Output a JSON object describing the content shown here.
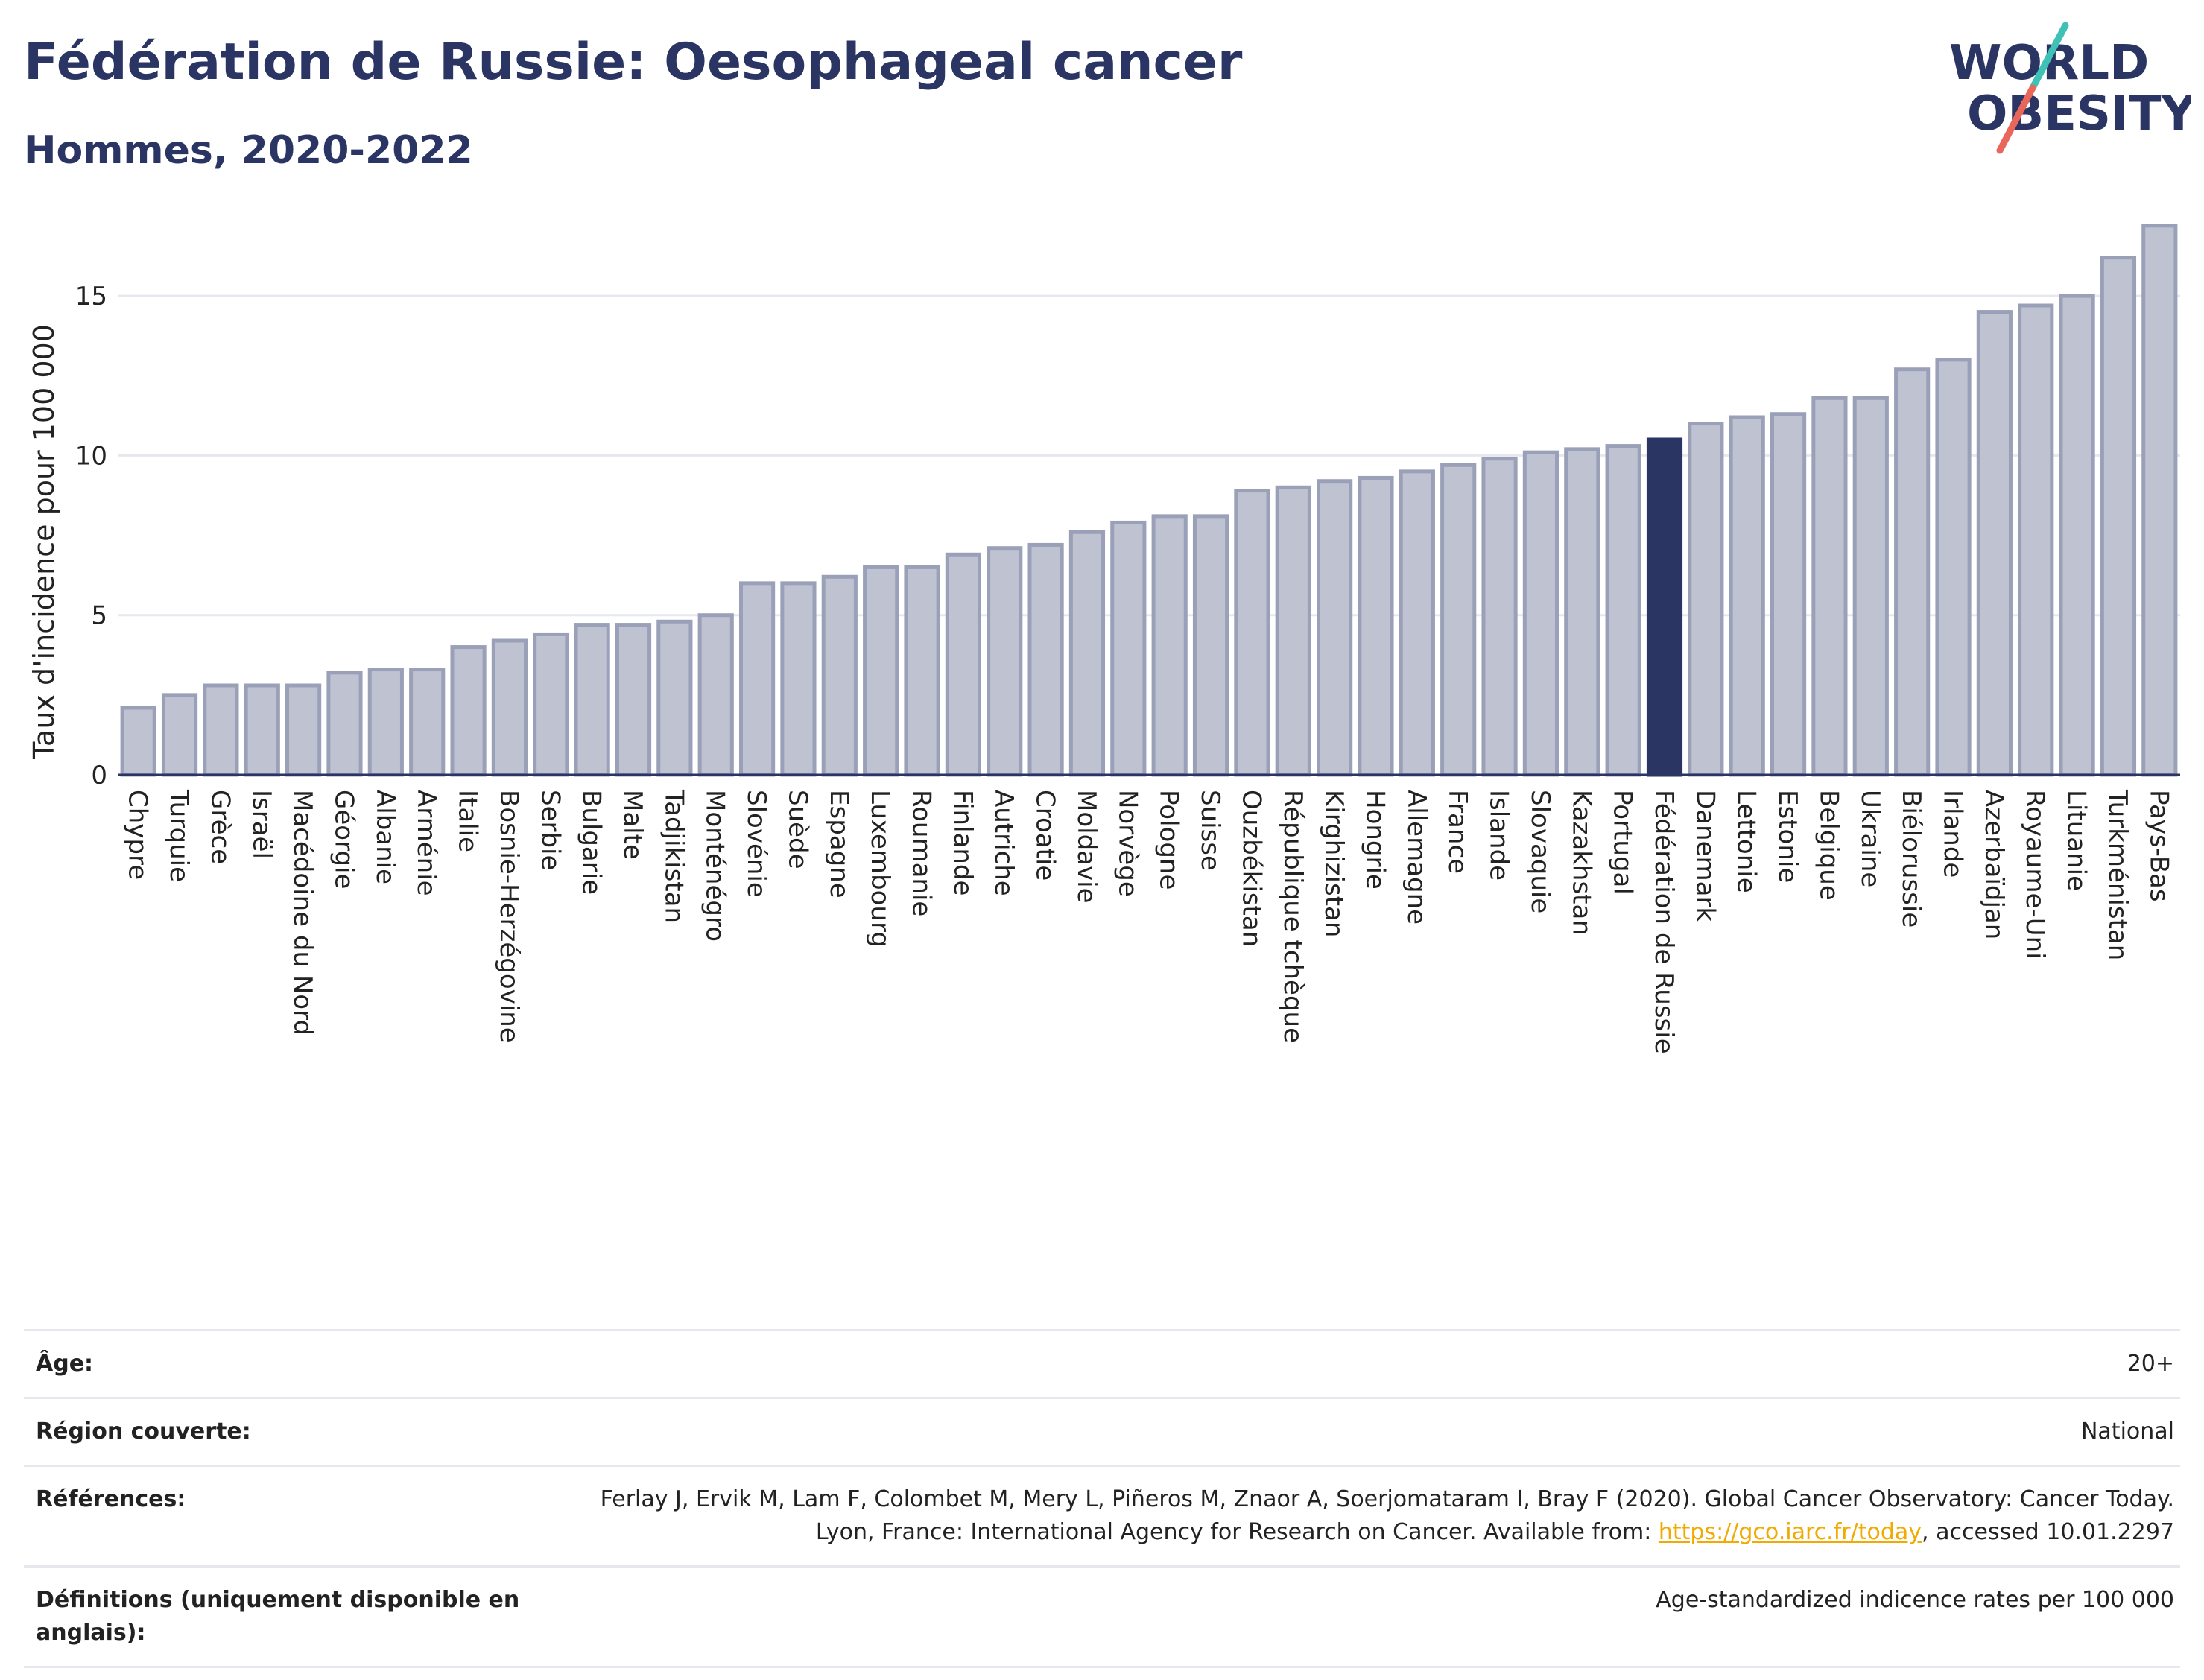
{
  "header": {
    "title": "Fédération de Russie: Oesophageal cancer",
    "subtitle": "Hommes, 2020-2022"
  },
  "logo": {
    "line1": "WORLD",
    "line2": "OBESITY"
  },
  "colors": {
    "bar": "#bfc3d1",
    "bar_stroke": "#9aa0b8",
    "highlight": "#2b3564",
    "grid": "#e6e8ee"
  },
  "chart_data": {
    "type": "bar",
    "ylabel": "Taux d'incidence pour 100 000",
    "ylim": [
      0,
      17.5
    ],
    "yticks": [
      0,
      5,
      10,
      15
    ],
    "grid": true,
    "highlight": "Fédération de Russie",
    "categories": [
      "Chypre",
      "Turquie",
      "Grèce",
      "Israël",
      "Macédoine du Nord",
      "Géorgie",
      "Albanie",
      "Arménie",
      "Italie",
      "Bosnie-Herzégovine",
      "Serbie",
      "Bulgarie",
      "Malte",
      "Tadjikistan",
      "Monténégro",
      "Slovénie",
      "Suède",
      "Espagne",
      "Luxembourg",
      "Roumanie",
      "Finlande",
      "Autriche",
      "Croatie",
      "Moldavie",
      "Norvège",
      "Pologne",
      "Suisse",
      "Ouzbékistan",
      "République tchèque",
      "Kirghizistan",
      "Hongrie",
      "Allemagne",
      "France",
      "Islande",
      "Slovaquie",
      "Kazakhstan",
      "Portugal",
      "Fédération de Russie",
      "Danemark",
      "Lettonie",
      "Estonie",
      "Belgique",
      "Ukraine",
      "Biélorussie",
      "Irlande",
      "Azerbaïdjan",
      "Royaume-Uni",
      "Lituanie",
      "Turkménistan",
      "Pays-Bas"
    ],
    "values": [
      2.1,
      2.5,
      2.8,
      2.8,
      2.8,
      3.2,
      3.3,
      3.3,
      4.0,
      4.2,
      4.4,
      4.7,
      4.7,
      4.8,
      5.0,
      6.0,
      6.0,
      6.2,
      6.5,
      6.5,
      6.9,
      7.1,
      7.2,
      7.6,
      7.9,
      8.1,
      8.1,
      8.9,
      9.0,
      9.2,
      9.3,
      9.5,
      9.7,
      9.9,
      10.1,
      10.2,
      10.3,
      10.5,
      11.0,
      11.2,
      11.3,
      11.8,
      11.8,
      12.7,
      13.0,
      14.5,
      14.7,
      15.0,
      16.2,
      17.2
    ]
  },
  "info": {
    "age_label": "Âge:",
    "age_value": "20+",
    "region_label": "Région couverte:",
    "region_value": "National",
    "refs_label": "Références:",
    "refs_text": "Ferlay J, Ervik M, Lam F, Colombet M, Mery L, Piñeros M, Znaor A, Soerjomataram I, Bray F (2020). Global Cancer Observatory: Cancer Today. Lyon, France: International Agency for Research on Cancer. Available from: ",
    "refs_link": "https://gco.iarc.fr/today",
    "refs_suffix": ", accessed 10.01.2297",
    "defs_label": "Définitions (uniquement disponible en anglais):",
    "defs_value": "Age-standardized indicence rates per 100 000"
  }
}
